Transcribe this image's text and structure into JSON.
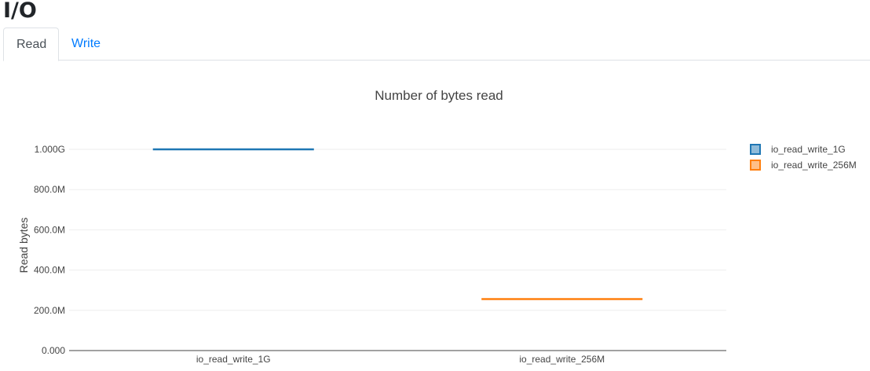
{
  "page": {
    "title": "I/O"
  },
  "tabs": [
    {
      "label": "Read",
      "active": true
    },
    {
      "label": "Write",
      "active": false
    }
  ],
  "chart_data": {
    "type": "box",
    "title": "Number of bytes read",
    "xlabel": "",
    "ylabel": "Read bytes",
    "categories": [
      "io_read_write_1G",
      "io_read_write_256M"
    ],
    "series": [
      {
        "name": "io_read_write_1G",
        "category": "io_read_write_1G",
        "values": [
          1000000000
        ],
        "color": "#1f77b4"
      },
      {
        "name": "io_read_write_256M",
        "category": "io_read_write_256M",
        "values": [
          256000000
        ],
        "color": "#ff7f0e"
      }
    ],
    "ylim": [
      0,
      1000000000
    ],
    "yticks": [
      0,
      200000000,
      400000000,
      600000000,
      800000000,
      1000000000
    ],
    "ytick_labels": [
      "0.000",
      "200.0M",
      "400.0M",
      "600.0M",
      "800.0M",
      "1.000G"
    ],
    "grid": true,
    "legend": "top-right"
  }
}
